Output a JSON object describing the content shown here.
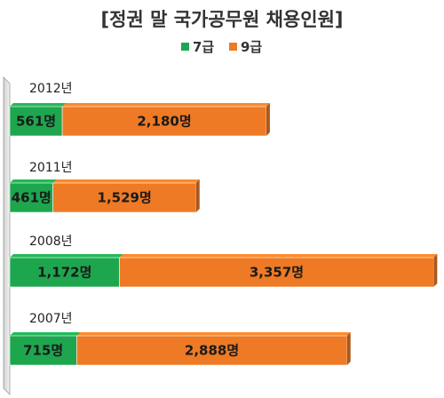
{
  "chart_data": {
    "type": "bar",
    "orientation": "horizontal",
    "stacked": true,
    "title": "[정권 말 국가공무원 채용인원]",
    "categories": [
      "2012년",
      "2011년",
      "2008년",
      "2007년"
    ],
    "series": [
      {
        "name": "7급",
        "color": "#1ea64f",
        "values": [
          561,
          461,
          1172,
          715
        ],
        "labels": [
          "561명",
          "461명",
          "1,172명",
          "715명"
        ]
      },
      {
        "name": "9급",
        "color": "#ee7a25",
        "values": [
          2180,
          1529,
          3357,
          2888
        ],
        "labels": [
          "2,180명",
          "1,529명",
          "3,357명",
          "2,888명"
        ]
      }
    ],
    "legend_position": "top-center",
    "grid": false
  }
}
